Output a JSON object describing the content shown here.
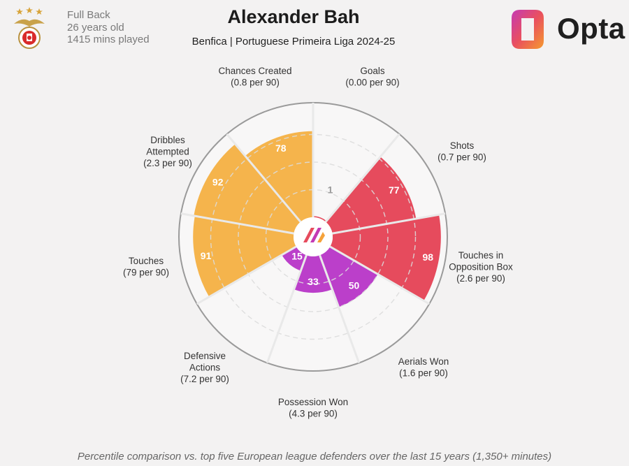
{
  "header": {
    "position": "Full Back",
    "age": "26 years old",
    "minutes": "1415 mins played"
  },
  "title": "Alexander Bah",
  "subtitle": "Benfica | Portuguese Primeira Liga 2024-25",
  "brand": {
    "name": "Opta"
  },
  "footnote": "Percentile comparison vs. top five European league defenders over the last 15 years (1,350+ minutes)",
  "colors": {
    "attacking": "#e64b5d",
    "possession": "#f5b44c",
    "defending": "#bb3fca",
    "background": "#f3f2f2",
    "segment_bg": "#f8f7f7",
    "grid": "#dcdcdc",
    "outer_ring": "#9a9a9a",
    "divider": "#e9e9e9"
  },
  "chart_data": {
    "type": "radar-bar",
    "scale_max": 100,
    "min_label": "1",
    "metrics": [
      {
        "name": "Goals",
        "per90": "(0.00 per 90)",
        "percentile": 1,
        "group": "attacking"
      },
      {
        "name": "Shots",
        "per90": "(0.7 per 90)",
        "percentile": 77,
        "group": "attacking"
      },
      {
        "name": "Touches in Opposition Box",
        "label_lines": [
          "Touches in",
          "Opposition Box"
        ],
        "per90": "(2.6 per 90)",
        "percentile": 98,
        "group": "attacking"
      },
      {
        "name": "Aerials Won",
        "per90": "(1.6 per 90)",
        "percentile": 50,
        "group": "defending"
      },
      {
        "name": "Possession Won",
        "per90": "(4.3 per 90)",
        "percentile": 33,
        "group": "defending"
      },
      {
        "name": "Defensive Actions",
        "label_lines": [
          "Defensive",
          "Actions"
        ],
        "per90": "(7.2 per 90)",
        "percentile": 15,
        "group": "defending"
      },
      {
        "name": "Touches",
        "per90": "(79 per 90)",
        "percentile": 91,
        "group": "possession"
      },
      {
        "name": "Dribbles Attempted",
        "label_lines": [
          "Dribbles",
          "Attempted"
        ],
        "per90": "(2.3 per 90)",
        "percentile": 92,
        "group": "possession"
      },
      {
        "name": "Chances Created",
        "per90": "(0.8 per 90)",
        "percentile": 78,
        "group": "possession"
      }
    ]
  }
}
